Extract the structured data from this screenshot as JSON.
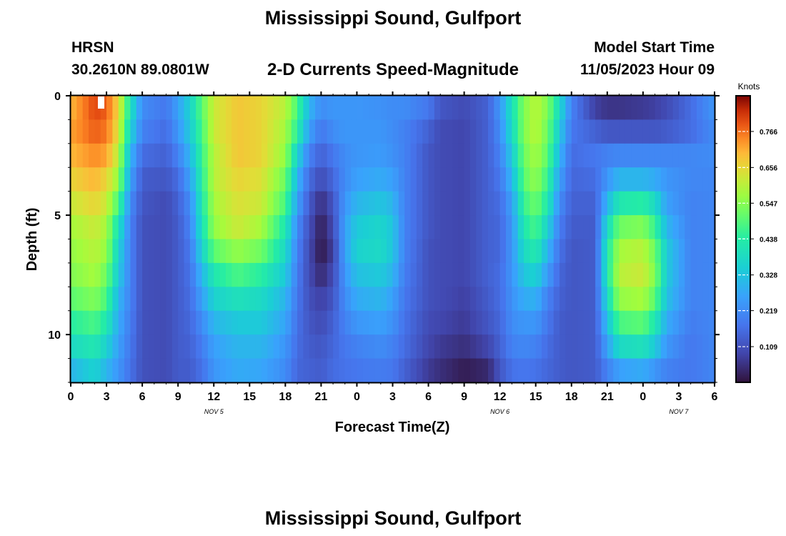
{
  "header": {
    "title": "Mississippi Sound, Gulfport",
    "station": "HRSN",
    "coords": "30.2610N  89.0801W",
    "subtitle": "2-D Currents Speed-Magnitude",
    "model_label": "Model Start Time",
    "model_time": "11/05/2023 Hour 09"
  },
  "footer": {
    "repeat_title": "Mississippi Sound, Gulfport"
  },
  "colorbar": {
    "unit": "Knots",
    "ticks": [
      "0.766",
      "0.656",
      "0.547",
      "0.438",
      "0.328",
      "0.219",
      "0.109"
    ],
    "tick_values": [
      0.766,
      0.656,
      0.547,
      0.438,
      0.328,
      0.219,
      0.109
    ],
    "range": [
      0,
      0.875
    ]
  },
  "chart_data": {
    "type": "heatmap",
    "title": "2-D Currents Speed-Magnitude",
    "xlabel": "Forecast Time(Z)",
    "ylabel": "Depth (ft)",
    "x_ticks": [
      "0",
      "3",
      "6",
      "9",
      "12",
      "15",
      "18",
      "21",
      "0",
      "3",
      "6",
      "9",
      "12",
      "15",
      "18",
      "21",
      "0",
      "3",
      "6"
    ],
    "y_ticks": [
      "0",
      "5",
      "10"
    ],
    "y_tick_values": [
      0,
      5,
      10
    ],
    "ylim": [
      0,
      12
    ],
    "x_hours_range": [
      0,
      54
    ],
    "date_labels": [
      {
        "label": "NOV 5",
        "hour": 12
      },
      {
        "label": "NOV 6",
        "hour": 36
      },
      {
        "label": "NOV 7",
        "hour": 51
      }
    ],
    "value_unit": "knots",
    "depth_rows": [
      0.5,
      1.5,
      2.5,
      3.5,
      4.5,
      5.5,
      6.5,
      7.5,
      8.5,
      9.5,
      10.5,
      11.5
    ],
    "columns": [
      {
        "hour": 0,
        "speeds": [
          0.7,
          0.72,
          0.7,
          0.66,
          0.62,
          0.58,
          0.56,
          0.54,
          0.5,
          0.44,
          0.38,
          0.3
        ]
      },
      {
        "hour": 2,
        "speeds": [
          0.8,
          0.78,
          0.74,
          0.7,
          0.66,
          0.62,
          0.6,
          0.58,
          0.54,
          0.48,
          0.42,
          0.36
        ]
      },
      {
        "hour": 3,
        "speeds": [
          0.78,
          0.76,
          0.72,
          0.66,
          0.62,
          0.58,
          0.56,
          0.52,
          0.48,
          0.42,
          0.36,
          0.3
        ]
      },
      {
        "hour": 4,
        "speeds": [
          0.66,
          0.64,
          0.6,
          0.56,
          0.48,
          0.4,
          0.36,
          0.34,
          0.3,
          0.28,
          0.26,
          0.24
        ]
      },
      {
        "hour": 5,
        "speeds": [
          0.4,
          0.36,
          0.3,
          0.26,
          0.22,
          0.2,
          0.2,
          0.2,
          0.2,
          0.19,
          0.18,
          0.17
        ]
      },
      {
        "hour": 6,
        "speeds": [
          0.22,
          0.2,
          0.16,
          0.13,
          0.12,
          0.11,
          0.11,
          0.11,
          0.11,
          0.11,
          0.11,
          0.11
        ]
      },
      {
        "hour": 8,
        "speeds": [
          0.18,
          0.16,
          0.14,
          0.12,
          0.1,
          0.1,
          0.1,
          0.1,
          0.1,
          0.1,
          0.1,
          0.1
        ]
      },
      {
        "hour": 9,
        "speeds": [
          0.26,
          0.24,
          0.2,
          0.16,
          0.14,
          0.13,
          0.13,
          0.13,
          0.13,
          0.13,
          0.13,
          0.13
        ]
      },
      {
        "hour": 10,
        "speeds": [
          0.36,
          0.34,
          0.3,
          0.26,
          0.22,
          0.2,
          0.18,
          0.17,
          0.16,
          0.15,
          0.14,
          0.13
        ]
      },
      {
        "hour": 11,
        "speeds": [
          0.5,
          0.48,
          0.46,
          0.44,
          0.42,
          0.4,
          0.36,
          0.3,
          0.26,
          0.22,
          0.19,
          0.17
        ]
      },
      {
        "hour": 12,
        "speeds": [
          0.62,
          0.62,
          0.6,
          0.6,
          0.58,
          0.56,
          0.5,
          0.42,
          0.36,
          0.3,
          0.26,
          0.24
        ]
      },
      {
        "hour": 14,
        "speeds": [
          0.68,
          0.68,
          0.68,
          0.66,
          0.64,
          0.62,
          0.56,
          0.48,
          0.4,
          0.34,
          0.3,
          0.28
        ]
      },
      {
        "hour": 16,
        "speeds": [
          0.66,
          0.66,
          0.66,
          0.64,
          0.62,
          0.58,
          0.52,
          0.44,
          0.38,
          0.34,
          0.3,
          0.27
        ]
      },
      {
        "hour": 18,
        "speeds": [
          0.6,
          0.58,
          0.56,
          0.52,
          0.48,
          0.42,
          0.38,
          0.34,
          0.3,
          0.27,
          0.24,
          0.22
        ]
      },
      {
        "hour": 19,
        "speeds": [
          0.48,
          0.44,
          0.36,
          0.3,
          0.26,
          0.22,
          0.2,
          0.19,
          0.18,
          0.17,
          0.16,
          0.15
        ]
      },
      {
        "hour": 20,
        "speeds": [
          0.3,
          0.26,
          0.2,
          0.16,
          0.13,
          0.11,
          0.1,
          0.1,
          0.11,
          0.12,
          0.13,
          0.14
        ]
      },
      {
        "hour": 21,
        "speeds": [
          0.22,
          0.18,
          0.14,
          0.1,
          0.05,
          0.02,
          0.01,
          0.04,
          0.08,
          0.1,
          0.12,
          0.13
        ]
      },
      {
        "hour": 22,
        "speeds": [
          0.24,
          0.22,
          0.18,
          0.15,
          0.12,
          0.1,
          0.08,
          0.1,
          0.12,
          0.14,
          0.15,
          0.16
        ]
      },
      {
        "hour": 23,
        "speeds": [
          0.24,
          0.24,
          0.22,
          0.22,
          0.24,
          0.26,
          0.26,
          0.24,
          0.22,
          0.2,
          0.18,
          0.17
        ]
      },
      {
        "hour": 24,
        "speeds": [
          0.24,
          0.24,
          0.24,
          0.26,
          0.3,
          0.34,
          0.36,
          0.32,
          0.28,
          0.24,
          0.2,
          0.18
        ]
      },
      {
        "hour": 26,
        "speeds": [
          0.23,
          0.24,
          0.25,
          0.28,
          0.33,
          0.37,
          0.38,
          0.34,
          0.3,
          0.26,
          0.22,
          0.19
        ]
      },
      {
        "hour": 27,
        "speeds": [
          0.22,
          0.22,
          0.23,
          0.26,
          0.3,
          0.33,
          0.33,
          0.3,
          0.26,
          0.23,
          0.2,
          0.18
        ]
      },
      {
        "hour": 28,
        "speeds": [
          0.22,
          0.2,
          0.2,
          0.2,
          0.2,
          0.2,
          0.2,
          0.19,
          0.18,
          0.17,
          0.16,
          0.14
        ]
      },
      {
        "hour": 30,
        "speeds": [
          0.18,
          0.14,
          0.12,
          0.12,
          0.12,
          0.12,
          0.11,
          0.11,
          0.11,
          0.1,
          0.09,
          0.07
        ]
      },
      {
        "hour": 31,
        "speeds": [
          0.12,
          0.1,
          0.1,
          0.1,
          0.1,
          0.1,
          0.1,
          0.1,
          0.1,
          0.09,
          0.07,
          0.05
        ]
      },
      {
        "hour": 33,
        "speeds": [
          0.1,
          0.09,
          0.09,
          0.09,
          0.09,
          0.09,
          0.09,
          0.09,
          0.08,
          0.07,
          0.05,
          0.02
        ]
      },
      {
        "hour": 35,
        "speeds": [
          0.14,
          0.14,
          0.14,
          0.14,
          0.14,
          0.14,
          0.14,
          0.14,
          0.13,
          0.12,
          0.09,
          0.04
        ]
      },
      {
        "hour": 36,
        "speeds": [
          0.24,
          0.22,
          0.2,
          0.18,
          0.16,
          0.15,
          0.15,
          0.16,
          0.16,
          0.15,
          0.14,
          0.12
        ]
      },
      {
        "hour": 37,
        "speeds": [
          0.4,
          0.38,
          0.34,
          0.3,
          0.26,
          0.24,
          0.24,
          0.24,
          0.23,
          0.22,
          0.2,
          0.17
        ]
      },
      {
        "hour": 38,
        "speeds": [
          0.54,
          0.54,
          0.52,
          0.5,
          0.46,
          0.42,
          0.38,
          0.33,
          0.28,
          0.24,
          0.21,
          0.18
        ]
      },
      {
        "hour": 39,
        "speeds": [
          0.6,
          0.6,
          0.58,
          0.56,
          0.52,
          0.48,
          0.43,
          0.36,
          0.29,
          0.24,
          0.2,
          0.17
        ]
      },
      {
        "hour": 40,
        "speeds": [
          0.54,
          0.52,
          0.5,
          0.46,
          0.42,
          0.36,
          0.3,
          0.25,
          0.2,
          0.18,
          0.16,
          0.15
        ]
      },
      {
        "hour": 41,
        "speeds": [
          0.38,
          0.34,
          0.3,
          0.26,
          0.22,
          0.19,
          0.17,
          0.15,
          0.14,
          0.13,
          0.13,
          0.13
        ]
      },
      {
        "hour": 42,
        "speeds": [
          0.2,
          0.18,
          0.16,
          0.15,
          0.14,
          0.13,
          0.12,
          0.12,
          0.12,
          0.12,
          0.12,
          0.12
        ]
      },
      {
        "hour": 44,
        "speeds": [
          0.08,
          0.14,
          0.18,
          0.16,
          0.14,
          0.13,
          0.13,
          0.13,
          0.13,
          0.13,
          0.13,
          0.13
        ]
      },
      {
        "hour": 45,
        "speeds": [
          0.06,
          0.12,
          0.2,
          0.24,
          0.3,
          0.38,
          0.42,
          0.42,
          0.38,
          0.32,
          0.26,
          0.2
        ]
      },
      {
        "hour": 46,
        "speeds": [
          0.06,
          0.12,
          0.21,
          0.3,
          0.42,
          0.52,
          0.58,
          0.6,
          0.56,
          0.48,
          0.38,
          0.26
        ]
      },
      {
        "hour": 48,
        "speeds": [
          0.07,
          0.12,
          0.21,
          0.3,
          0.44,
          0.54,
          0.6,
          0.62,
          0.58,
          0.5,
          0.4,
          0.28
        ]
      },
      {
        "hour": 49,
        "speeds": [
          0.08,
          0.12,
          0.21,
          0.28,
          0.38,
          0.46,
          0.52,
          0.54,
          0.5,
          0.42,
          0.34,
          0.24
        ]
      },
      {
        "hour": 50,
        "speeds": [
          0.1,
          0.13,
          0.21,
          0.24,
          0.26,
          0.3,
          0.34,
          0.34,
          0.32,
          0.28,
          0.24,
          0.2
        ]
      },
      {
        "hour": 52,
        "speeds": [
          0.16,
          0.16,
          0.21,
          0.21,
          0.2,
          0.2,
          0.2,
          0.2,
          0.2,
          0.19,
          0.18,
          0.18
        ]
      },
      {
        "hour": 54,
        "speeds": [
          0.24,
          0.22,
          0.22,
          0.21,
          0.21,
          0.21,
          0.21,
          0.21,
          0.21,
          0.21,
          0.21,
          0.21
        ]
      }
    ]
  }
}
